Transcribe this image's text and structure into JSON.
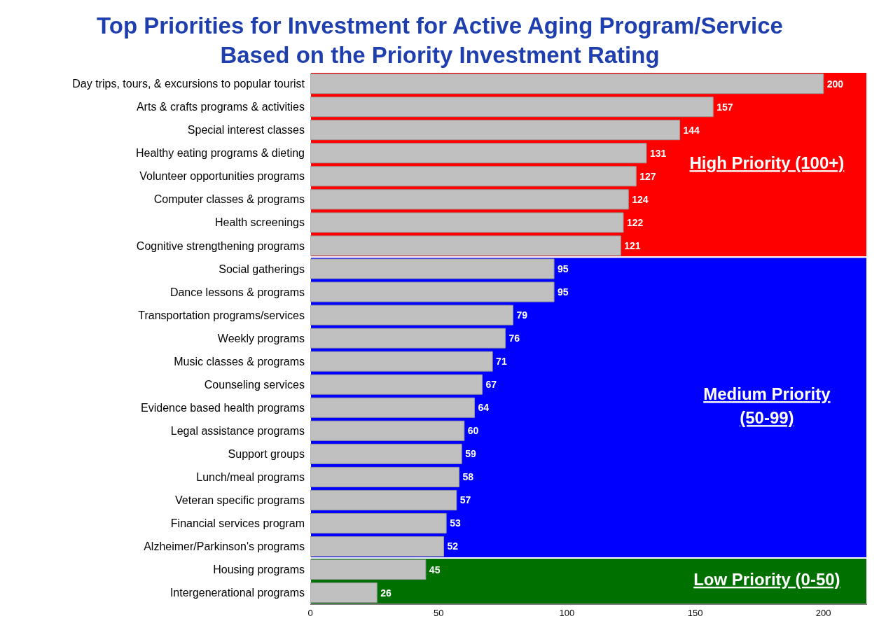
{
  "chart_data": {
    "type": "bar",
    "orientation": "horizontal",
    "title": "Top Priorities for Investment for Active Aging Program/Service\nBased on the Priority Investment Rating",
    "categories": [
      "Day trips, tours, & excursions to popular tourist",
      "Arts & crafts programs & activities",
      "Special interest classes",
      "Healthy eating programs & dieting",
      "Volunteer opportunities programs",
      "Computer classes & programs",
      "Health screenings",
      "Cognitive strengthening programs",
      "Social gatherings",
      "Dance lessons & programs",
      "Transportation programs/services",
      "Weekly programs",
      "Music classes & programs",
      "Counseling services",
      "Evidence based health programs",
      "Legal assistance programs",
      "Support groups",
      "Lunch/meal programs",
      "Veteran specific programs",
      "Financial services program",
      "Alzheimer/Parkinson's programs",
      "Housing programs",
      "Intergenerational programs"
    ],
    "values": [
      200,
      157,
      144,
      131,
      127,
      124,
      122,
      121,
      95,
      95,
      79,
      76,
      71,
      67,
      64,
      60,
      59,
      58,
      57,
      53,
      52,
      45,
      26
    ],
    "color": "#c0c0c0",
    "data_labels": true,
    "xlim": [
      0,
      217
    ],
    "xticks": [
      0,
      50,
      100,
      150,
      200
    ],
    "bands": [
      {
        "axis": "y",
        "from": "Day trips, tours, & excursions to popular tourist",
        "to": "Cognitive strengthening programs",
        "label": "High Priority (100+)",
        "color": "#ff0000"
      },
      {
        "axis": "y",
        "from": "Social gatherings",
        "to": "Alzheimer/Parkinson's programs",
        "label": "Medium Priority (50-99)",
        "color": "#0000ff"
      },
      {
        "axis": "y",
        "from": "Housing programs",
        "to": "Intergenerational programs",
        "label": "Low Priority (0-50)",
        "color": "#007000"
      }
    ]
  }
}
